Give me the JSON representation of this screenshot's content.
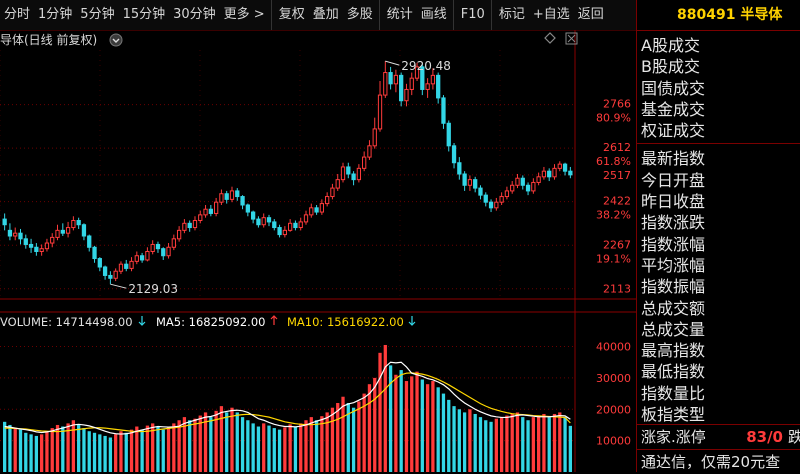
{
  "toolbar": {
    "items": [
      "分时",
      "1分钟",
      "5分钟",
      "15分钟",
      "30分钟",
      "更多 >",
      "复权",
      "叠加",
      "多股",
      "统计",
      "画线",
      "F10",
      "标记",
      "+自选",
      "返回"
    ]
  },
  "chart_header": {
    "title": "导体(日线 前复权)"
  },
  "price_axis": {
    "ticks": [
      "2766",
      "80.9%",
      "2612",
      "61.8%",
      "2517",
      "2422",
      "38.2%",
      "2267",
      "19.1%",
      "2113"
    ]
  },
  "annotations": {
    "high": "2920.48",
    "low": "2129.03"
  },
  "volume": {
    "volume_label": "VOLUME: 14714498.00",
    "ma5_label": "MA5: 16825092.00",
    "ma10_label": "MA10: 15616922.00",
    "ticks": [
      "40000",
      "30000",
      "20000",
      "10000"
    ]
  },
  "colors": {
    "up": "#ff3b3b",
    "down": "#33d6e6",
    "ma5": "#ffffff",
    "ma10": "#ffd700",
    "grid": "#6a0000"
  },
  "right_panel": {
    "code": "880491",
    "name": "半导体",
    "group1": [
      "A股成交",
      "B股成交",
      "国债成交",
      "基金成交",
      "权证成交"
    ],
    "group2": [
      "最新指数",
      "今日开盘",
      "昨日收盘",
      "指数涨跌",
      "指数涨幅",
      "平均涨幅",
      "指数振幅",
      "总成交额",
      "总成交量",
      "最高指数",
      "最低指数",
      "指数量比",
      "板指类型"
    ],
    "limit_label": "涨家.涨停",
    "limit_value": "83/0",
    "limit_suffix": "跌",
    "promo": "通达信，仅需20元查"
  },
  "chart_data": {
    "type": "candlestick",
    "price_range": [
      2080,
      2960
    ],
    "candles": [
      [
        2360,
        2340,
        2380,
        2320
      ],
      [
        2320,
        2300,
        2345,
        2285
      ],
      [
        2300,
        2310,
        2330,
        2285
      ],
      [
        2310,
        2290,
        2325,
        2270
      ],
      [
        2290,
        2270,
        2305,
        2255
      ],
      [
        2270,
        2260,
        2290,
        2240
      ],
      [
        2260,
        2245,
        2275,
        2230
      ],
      [
        2245,
        2255,
        2270,
        2230
      ],
      [
        2255,
        2275,
        2290,
        2245
      ],
      [
        2275,
        2295,
        2310,
        2260
      ],
      [
        2295,
        2320,
        2340,
        2285
      ],
      [
        2320,
        2310,
        2345,
        2300
      ],
      [
        2310,
        2330,
        2350,
        2295
      ],
      [
        2330,
        2355,
        2370,
        2320
      ],
      [
        2355,
        2340,
        2365,
        2325
      ],
      [
        2340,
        2300,
        2345,
        2285
      ],
      [
        2300,
        2260,
        2305,
        2245
      ],
      [
        2260,
        2220,
        2265,
        2205
      ],
      [
        2220,
        2190,
        2225,
        2175
      ],
      [
        2190,
        2160,
        2195,
        2145
      ],
      [
        2160,
        2150,
        2175,
        2129
      ],
      [
        2150,
        2175,
        2185,
        2140
      ],
      [
        2175,
        2200,
        2210,
        2165
      ],
      [
        2200,
        2185,
        2215,
        2175
      ],
      [
        2185,
        2210,
        2225,
        2175
      ],
      [
        2210,
        2230,
        2245,
        2200
      ],
      [
        2230,
        2215,
        2240,
        2205
      ],
      [
        2215,
        2245,
        2260,
        2210
      ],
      [
        2245,
        2270,
        2285,
        2235
      ],
      [
        2270,
        2255,
        2280,
        2240
      ],
      [
        2255,
        2230,
        2260,
        2215
      ],
      [
        2230,
        2260,
        2275,
        2220
      ],
      [
        2260,
        2290,
        2305,
        2250
      ],
      [
        2290,
        2320,
        2335,
        2280
      ],
      [
        2320,
        2345,
        2360,
        2310
      ],
      [
        2345,
        2330,
        2355,
        2315
      ],
      [
        2330,
        2355,
        2370,
        2320
      ],
      [
        2355,
        2375,
        2390,
        2345
      ],
      [
        2375,
        2395,
        2410,
        2365
      ],
      [
        2395,
        2380,
        2410,
        2370
      ],
      [
        2380,
        2420,
        2435,
        2370
      ],
      [
        2420,
        2450,
        2465,
        2410
      ],
      [
        2450,
        2430,
        2460,
        2415
      ],
      [
        2430,
        2460,
        2475,
        2420
      ],
      [
        2460,
        2440,
        2470,
        2425
      ],
      [
        2440,
        2410,
        2445,
        2395
      ],
      [
        2410,
        2385,
        2415,
        2370
      ],
      [
        2385,
        2360,
        2390,
        2345
      ],
      [
        2360,
        2340,
        2370,
        2330
      ],
      [
        2340,
        2365,
        2380,
        2330
      ],
      [
        2365,
        2350,
        2375,
        2335
      ],
      [
        2350,
        2330,
        2360,
        2320
      ],
      [
        2330,
        2305,
        2340,
        2295
      ],
      [
        2305,
        2320,
        2335,
        2295
      ],
      [
        2320,
        2345,
        2360,
        2315
      ],
      [
        2345,
        2330,
        2355,
        2320
      ],
      [
        2330,
        2350,
        2365,
        2320
      ],
      [
        2350,
        2375,
        2390,
        2340
      ],
      [
        2375,
        2400,
        2415,
        2365
      ],
      [
        2400,
        2385,
        2410,
        2375
      ],
      [
        2385,
        2415,
        2430,
        2375
      ],
      [
        2415,
        2440,
        2455,
        2405
      ],
      [
        2440,
        2470,
        2485,
        2430
      ],
      [
        2470,
        2500,
        2520,
        2460
      ],
      [
        2500,
        2545,
        2560,
        2490
      ],
      [
        2545,
        2520,
        2560,
        2505
      ],
      [
        2520,
        2500,
        2530,
        2480
      ],
      [
        2500,
        2540,
        2555,
        2490
      ],
      [
        2540,
        2580,
        2600,
        2530
      ],
      [
        2580,
        2620,
        2640,
        2570
      ],
      [
        2620,
        2680,
        2720,
        2610
      ],
      [
        2680,
        2800,
        2850,
        2670
      ],
      [
        2800,
        2880,
        2920.48,
        2790
      ],
      [
        2880,
        2840,
        2900,
        2820
      ],
      [
        2840,
        2870,
        2890,
        2810
      ],
      [
        2870,
        2780,
        2880,
        2760
      ],
      [
        2780,
        2820,
        2840,
        2760
      ],
      [
        2820,
        2860,
        2880,
        2800
      ],
      [
        2860,
        2900,
        2915,
        2850
      ],
      [
        2900,
        2820,
        2910,
        2800
      ],
      [
        2820,
        2840,
        2860,
        2790
      ],
      [
        2840,
        2870,
        2895,
        2820
      ],
      [
        2870,
        2790,
        2880,
        2770
      ],
      [
        2790,
        2700,
        2800,
        2680
      ],
      [
        2700,
        2620,
        2710,
        2600
      ],
      [
        2620,
        2560,
        2630,
        2540
      ],
      [
        2560,
        2520,
        2580,
        2500
      ],
      [
        2520,
        2480,
        2530,
        2460
      ],
      [
        2480,
        2500,
        2515,
        2460
      ],
      [
        2500,
        2470,
        2510,
        2455
      ],
      [
        2470,
        2445,
        2480,
        2430
      ],
      [
        2445,
        2420,
        2455,
        2405
      ],
      [
        2420,
        2400,
        2430,
        2385
      ],
      [
        2400,
        2420,
        2435,
        2390
      ],
      [
        2420,
        2440,
        2455,
        2410
      ],
      [
        2440,
        2460,
        2475,
        2430
      ],
      [
        2460,
        2480,
        2495,
        2450
      ],
      [
        2480,
        2505,
        2520,
        2470
      ],
      [
        2505,
        2480,
        2515,
        2465
      ],
      [
        2480,
        2460,
        2490,
        2445
      ],
      [
        2460,
        2490,
        2505,
        2450
      ],
      [
        2490,
        2510,
        2525,
        2480
      ],
      [
        2510,
        2530,
        2545,
        2500
      ],
      [
        2530,
        2510,
        2540,
        2495
      ],
      [
        2510,
        2540,
        2555,
        2500
      ],
      [
        2540,
        2555,
        2565,
        2530
      ],
      [
        2555,
        2530,
        2560,
        2515
      ],
      [
        2530,
        2517,
        2545,
        2505
      ]
    ],
    "volumes": [
      16000,
      15000,
      14000,
      13500,
      12500,
      12000,
      11500,
      12000,
      13000,
      14000,
      15000,
      14500,
      15500,
      16500,
      15000,
      14000,
      13000,
      12500,
      12000,
      11500,
      11000,
      12000,
      13000,
      12500,
      13500,
      14500,
      13500,
      14800,
      15500,
      14500,
      13500,
      14500,
      15500,
      16500,
      17500,
      16500,
      17000,
      18000,
      19000,
      17500,
      19500,
      21000,
      19000,
      20500,
      19000,
      17500,
      16500,
      15500,
      14500,
      15500,
      14800,
      14000,
      13500,
      14200,
      15200,
      14500,
      15500,
      16500,
      17500,
      16500,
      17800,
      19000,
      20500,
      22000,
      24000,
      22000,
      20500,
      22500,
      25000,
      28000,
      30000,
      38000,
      40500,
      34000,
      31000,
      32500,
      29000,
      30500,
      32000,
      29500,
      28000,
      29000,
      27000,
      25000,
      23000,
      21000,
      20000,
      19000,
      20000,
      18500,
      17500,
      16500,
      16000,
      17000,
      17500,
      18000,
      18500,
      19000,
      17500,
      16500,
      17500,
      18000,
      18500,
      17500,
      18500,
      19000,
      17500,
      14714
    ],
    "ma5": [
      14500,
      14300,
      14000,
      13700,
      13500,
      13200,
      12800,
      12600,
      12800,
      13100,
      13600,
      14000,
      14500,
      15000,
      15200,
      15000,
      14700,
      14200,
      13600,
      13000,
      12500,
      12200,
      12100,
      12200,
      12500,
      13000,
      13400,
      13800,
      14200,
      14500,
      14400,
      14300,
      14400,
      14600,
      15500,
      16000,
      16500,
      17000,
      17500,
      17700,
      18200,
      19000,
      19300,
      19600,
      19700,
      19500,
      19000,
      18000,
      17000,
      16500,
      15800,
      15200,
      14800,
      14500,
      14500,
      14400,
      14600,
      15000,
      15600,
      16200,
      16700,
      17300,
      18300,
      19500,
      21000,
      21700,
      22100,
      22900,
      23700,
      25000,
      27000,
      30000,
      33500,
      35000,
      34800,
      35000,
      33500,
      31500,
      31000,
      30500,
      29800,
      29400,
      28700,
      27800,
      26500,
      24800,
      23300,
      22000,
      21000,
      20000,
      19200,
      18500,
      17900,
      17600,
      17400,
      17400,
      17700,
      18100,
      18200,
      18000,
      17800,
      17600,
      17600,
      17600,
      17800,
      18000,
      17900,
      16825
    ],
    "ma10": [
      14000,
      14000,
      13900,
      13800,
      13700,
      13500,
      13300,
      13100,
      13000,
      12900,
      12900,
      13000,
      13200,
      13400,
      13600,
      13800,
      14000,
      14100,
      14100,
      14000,
      13800,
      13600,
      13400,
      13200,
      13000,
      12900,
      12900,
      13000,
      13200,
      13500,
      13700,
      13900,
      14100,
      14300,
      14600,
      15000,
      15300,
      15600,
      16000,
      16300,
      16700,
      17100,
      17500,
      17800,
      18100,
      18300,
      18400,
      18300,
      18100,
      17800,
      17500,
      17000,
      16500,
      16000,
      15700,
      15400,
      15200,
      15100,
      15100,
      15200,
      15400,
      15700,
      16200,
      16800,
      17600,
      18500,
      19300,
      20100,
      21000,
      22000,
      23200,
      24800,
      26500,
      28300,
      29800,
      31000,
      31500,
      31600,
      31400,
      31200,
      30800,
      30200,
      29500,
      28700,
      27800,
      26800,
      25800,
      24800,
      23800,
      22800,
      21800,
      21000,
      20300,
      19800,
      19300,
      18900,
      18600,
      18400,
      18300,
      18200,
      18000,
      17900,
      17800,
      17700,
      17600,
      17500,
      17400,
      15616
    ],
    "volume_range": [
      0,
      44000
    ]
  }
}
